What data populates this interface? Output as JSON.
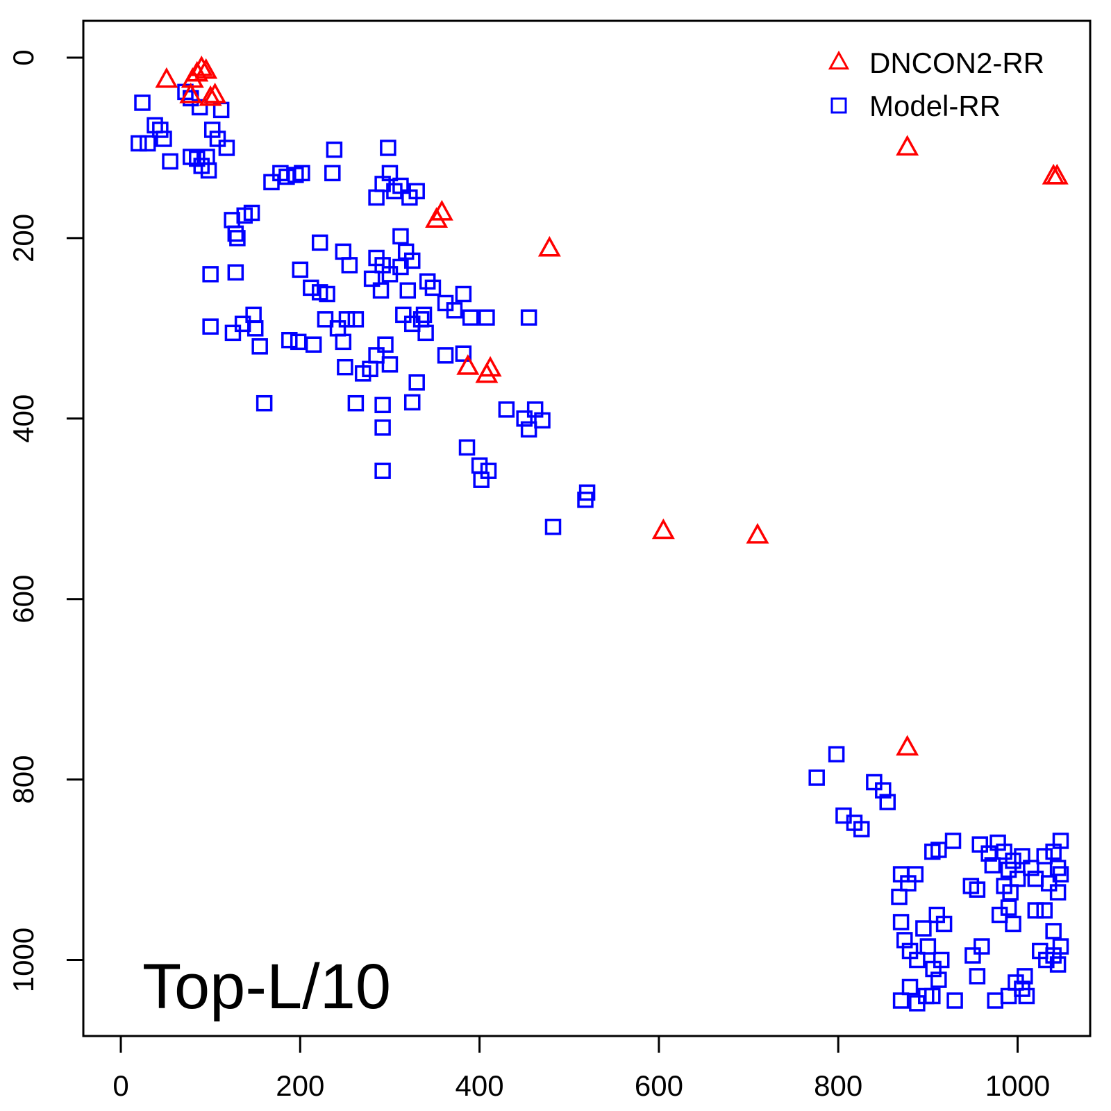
{
  "chart_data": {
    "type": "scatter",
    "title": "",
    "xlabel": "",
    "ylabel": "",
    "xlim": [
      -40,
      1090
    ],
    "ylim": [
      1085,
      -40
    ],
    "y_axis_reversed": true,
    "grid": false,
    "legend_position": "top-right",
    "x_ticks": [
      "0",
      "200",
      "400",
      "600",
      "800",
      "1000"
    ],
    "y_ticks": [
      "0",
      "200",
      "400",
      "600",
      "800",
      "1000"
    ],
    "annotation": "Top-L/10",
    "series": [
      {
        "name": "DNCON2-RR",
        "marker": "triangle",
        "color": "#ff0000",
        "points": [
          [
            51,
            25
          ],
          [
            80,
            25
          ],
          [
            85,
            18
          ],
          [
            90,
            12
          ],
          [
            95,
            15
          ],
          [
            78,
            42
          ],
          [
            100,
            45
          ],
          [
            105,
            42
          ],
          [
            352,
            180
          ],
          [
            358,
            172
          ],
          [
            478,
            212
          ],
          [
            387,
            343
          ],
          [
            408,
            352
          ],
          [
            412,
            345
          ],
          [
            605,
            525
          ],
          [
            710,
            530
          ],
          [
            877,
            100
          ],
          [
            1040,
            132
          ],
          [
            1044,
            132
          ],
          [
            877,
            765
          ]
        ]
      },
      {
        "name": "Model-RR",
        "marker": "square",
        "color": "#0000ff",
        "points": [
          [
            24,
            50
          ],
          [
            20,
            95
          ],
          [
            30,
            95
          ],
          [
            38,
            75
          ],
          [
            44,
            80
          ],
          [
            48,
            90
          ],
          [
            55,
            115
          ],
          [
            72,
            38
          ],
          [
            78,
            45
          ],
          [
            88,
            55
          ],
          [
            96,
            110
          ],
          [
            98,
            125
          ],
          [
            78,
            110
          ],
          [
            85,
            112
          ],
          [
            90,
            120
          ],
          [
            112,
            58
          ],
          [
            102,
            80
          ],
          [
            108,
            90
          ],
          [
            118,
            100
          ],
          [
            124,
            180
          ],
          [
            128,
            195
          ],
          [
            130,
            200
          ],
          [
            138,
            175
          ],
          [
            146,
            172
          ],
          [
            100,
            240
          ],
          [
            128,
            238
          ],
          [
            100,
            298
          ],
          [
            125,
            305
          ],
          [
            136,
            295
          ],
          [
            148,
            285
          ],
          [
            150,
            300
          ],
          [
            155,
            320
          ],
          [
            160,
            383
          ],
          [
            168,
            138
          ],
          [
            178,
            128
          ],
          [
            185,
            132
          ],
          [
            195,
            130
          ],
          [
            202,
            128
          ],
          [
            238,
            102
          ],
          [
            236,
            128
          ],
          [
            222,
            205
          ],
          [
            248,
            215
          ],
          [
            255,
            230
          ],
          [
            200,
            235
          ],
          [
            212,
            255
          ],
          [
            222,
            260
          ],
          [
            230,
            262
          ],
          [
            228,
            290
          ],
          [
            242,
            300
          ],
          [
            248,
            315
          ],
          [
            262,
            290
          ],
          [
            252,
            290
          ],
          [
            188,
            313
          ],
          [
            198,
            315
          ],
          [
            215,
            318
          ],
          [
            250,
            343
          ],
          [
            262,
            383
          ],
          [
            270,
            350
          ],
          [
            278,
            345
          ],
          [
            285,
            330
          ],
          [
            295,
            318
          ],
          [
            300,
            340
          ],
          [
            292,
            385
          ],
          [
            292,
            410
          ],
          [
            292,
            458
          ],
          [
            285,
            155
          ],
          [
            292,
            140
          ],
          [
            300,
            128
          ],
          [
            305,
            148
          ],
          [
            312,
            142
          ],
          [
            322,
            155
          ],
          [
            330,
            148
          ],
          [
            298,
            100
          ],
          [
            312,
            198
          ],
          [
            318,
            215
          ],
          [
            312,
            232
          ],
          [
            300,
            240
          ],
          [
            292,
            230
          ],
          [
            285,
            222
          ],
          [
            280,
            245
          ],
          [
            290,
            258
          ],
          [
            320,
            258
          ],
          [
            325,
            225
          ],
          [
            342,
            248
          ],
          [
            348,
            255
          ],
          [
            338,
            285
          ],
          [
            325,
            295
          ],
          [
            315,
            285
          ],
          [
            335,
            290
          ],
          [
            340,
            305
          ],
          [
            330,
            360
          ],
          [
            325,
            382
          ],
          [
            362,
            330
          ],
          [
            362,
            272
          ],
          [
            372,
            280
          ],
          [
            382,
            262
          ],
          [
            390,
            288
          ],
          [
            408,
            288
          ],
          [
            382,
            328
          ],
          [
            386,
            432
          ],
          [
            400,
            452
          ],
          [
            410,
            458
          ],
          [
            402,
            468
          ],
          [
            430,
            390
          ],
          [
            450,
            400
          ],
          [
            455,
            412
          ],
          [
            462,
            390
          ],
          [
            470,
            402
          ],
          [
            455,
            288
          ],
          [
            482,
            520
          ],
          [
            518,
            490
          ],
          [
            520,
            482
          ],
          [
            776,
            798
          ],
          [
            798,
            772
          ],
          [
            806,
            840
          ],
          [
            818,
            848
          ],
          [
            826,
            855
          ],
          [
            840,
            803
          ],
          [
            850,
            812
          ],
          [
            855,
            825
          ],
          [
            868,
            930
          ],
          [
            870,
            905
          ],
          [
            878,
            915
          ],
          [
            886,
            905
          ],
          [
            870,
            958
          ],
          [
            874,
            978
          ],
          [
            880,
            990
          ],
          [
            888,
            1000
          ],
          [
            895,
            965
          ],
          [
            900,
            985
          ],
          [
            906,
            1010
          ],
          [
            915,
            1000
          ],
          [
            912,
            1022
          ],
          [
            898,
            1040
          ],
          [
            870,
            1045
          ],
          [
            880,
            1030
          ],
          [
            888,
            1048
          ],
          [
            905,
            880
          ],
          [
            912,
            878
          ],
          [
            928,
            868
          ],
          [
            905,
            1040
          ],
          [
            930,
            1045
          ],
          [
            910,
            950
          ],
          [
            918,
            960
          ],
          [
            948,
            918
          ],
          [
            955,
            922
          ],
          [
            950,
            995
          ],
          [
            960,
            985
          ],
          [
            955,
            1018
          ],
          [
            958,
            872
          ],
          [
            968,
            882
          ],
          [
            972,
            895
          ],
          [
            978,
            870
          ],
          [
            985,
            880
          ],
          [
            990,
            900
          ],
          [
            995,
            890
          ],
          [
            1000,
            910
          ],
          [
            1005,
            885
          ],
          [
            985,
            918
          ],
          [
            992,
            925
          ],
          [
            980,
            950
          ],
          [
            990,
            942
          ],
          [
            995,
            960
          ],
          [
            975,
            1045
          ],
          [
            990,
            1040
          ],
          [
            998,
            1025
          ],
          [
            1005,
            1032
          ],
          [
            1008,
            1018
          ],
          [
            1010,
            1040
          ],
          [
            1030,
            885
          ],
          [
            1040,
            880
          ],
          [
            1045,
            898
          ],
          [
            1048,
            905
          ],
          [
            1035,
            915
          ],
          [
            1045,
            925
          ],
          [
            1030,
            945
          ],
          [
            1020,
            945
          ],
          [
            1025,
            990
          ],
          [
            1032,
            1000
          ],
          [
            1040,
            995
          ],
          [
            1045,
            1005
          ],
          [
            1048,
            985
          ],
          [
            1040,
            968
          ],
          [
            1048,
            868
          ],
          [
            1015,
            898
          ],
          [
            1020,
            910
          ]
        ]
      }
    ]
  }
}
